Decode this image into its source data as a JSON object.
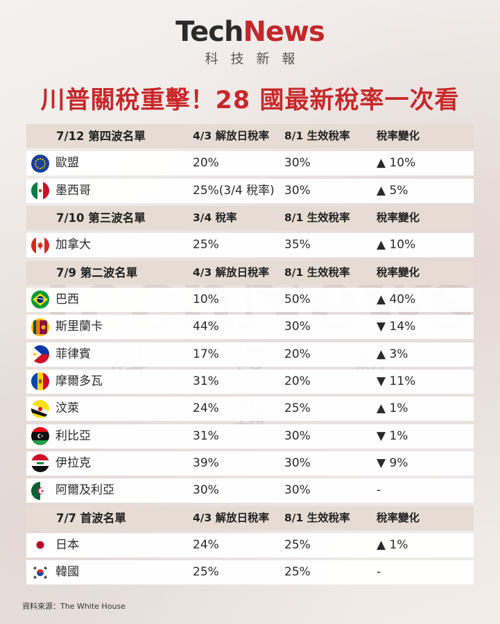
{
  "brand": {
    "logo_tech": "Tech",
    "logo_news": "News",
    "logo_sub": "科技新報"
  },
  "title": "川普關稅重擊！28 國最新稅率一次看",
  "colors": {
    "title": "#c8282b",
    "increase": "#d02a2a",
    "decrease": "#6aa832",
    "header_bg": "#e6dcd3"
  },
  "groups": [
    {
      "name": "7/12 第四波名單",
      "col_a": "4/3 解放日稅率",
      "col_b": "8/1 生效稅率",
      "col_c": "稅率變化",
      "rows": [
        {
          "flag": "eu-flag-icon",
          "country": "歐盟",
          "a": "20%",
          "b": "30%",
          "change": "▲ 10%",
          "dir": "up"
        },
        {
          "flag": "mexico-flag-icon",
          "country": "墨西哥",
          "a": "25%(3/4 稅率)",
          "b": "30%",
          "change": "▲ 5%",
          "dir": "up"
        }
      ]
    },
    {
      "name": "7/10 第三波名單",
      "col_a": "3/4 稅率",
      "col_b": "8/1 生效稅率",
      "col_c": "稅率變化",
      "rows": [
        {
          "flag": "canada-flag-icon",
          "country": "加拿大",
          "a": "25%",
          "b": "35%",
          "change": "▲ 10%",
          "dir": "up"
        }
      ]
    },
    {
      "name": "7/9 第二波名單",
      "col_a": "4/3 解放日稅率",
      "col_b": "8/1 生效稅率",
      "col_c": "稅率變化",
      "rows": [
        {
          "flag": "brazil-flag-icon",
          "country": "巴西",
          "a": "10%",
          "b": "50%",
          "change": "▲ 40%",
          "dir": "up"
        },
        {
          "flag": "sri-lanka-flag-icon",
          "country": "斯里蘭卡",
          "a": "44%",
          "b": "30%",
          "change": "▼ 14%",
          "dir": "down"
        },
        {
          "flag": "philippines-flag-icon",
          "country": "菲律賓",
          "a": "17%",
          "b": "20%",
          "change": "▲ 3%",
          "dir": "up"
        },
        {
          "flag": "moldova-flag-icon",
          "country": "摩爾多瓦",
          "a": "31%",
          "b": "20%",
          "change": "▼ 11%",
          "dir": "down"
        },
        {
          "flag": "brunei-flag-icon",
          "country": "汶萊",
          "a": "24%",
          "b": "25%",
          "change": "▲ 1%",
          "dir": "up"
        },
        {
          "flag": "libya-flag-icon",
          "country": "利比亞",
          "a": "31%",
          "b": "30%",
          "change": "▼ 1%",
          "dir": "down"
        },
        {
          "flag": "iraq-flag-icon",
          "country": "伊拉克",
          "a": "39%",
          "b": "30%",
          "change": "▼ 9%",
          "dir": "down"
        },
        {
          "flag": "algeria-flag-icon",
          "country": "阿爾及利亞",
          "a": "30%",
          "b": "30%",
          "change": "-",
          "dir": "neutral"
        }
      ]
    },
    {
      "name": "7/7 首波名單",
      "col_a": "4/3 解放日稅率",
      "col_b": "8/1 生效稅率",
      "col_c": "稅率變化",
      "rows": [
        {
          "flag": "japan-flag-icon",
          "country": "日本",
          "a": "24%",
          "b": "25%",
          "change": "▲ 1%",
          "dir": "up"
        },
        {
          "flag": "korea-flag-icon",
          "country": "韓國",
          "a": "25%",
          "b": "25%",
          "change": "-",
          "dir": "neutral"
        }
      ]
    }
  ],
  "source": "資料來源：The White House"
}
